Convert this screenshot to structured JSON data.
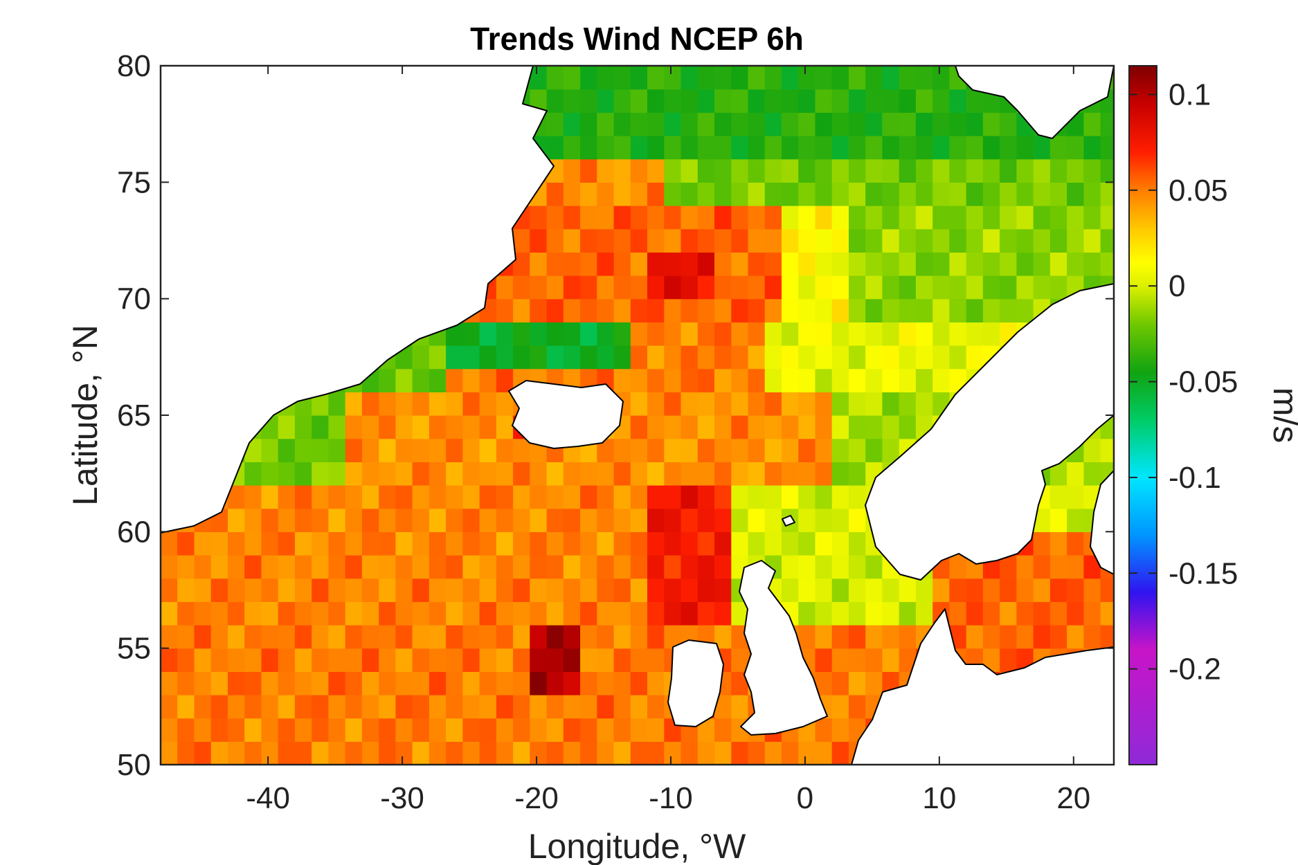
{
  "map": {
    "title": "Trends Wind NCEP 6h",
    "xlabel": "Longitude, °W",
    "ylabel": "Latitude, °N",
    "xticks": [
      "-40",
      "-30",
      "-20",
      "-10",
      "0",
      "10",
      "20"
    ],
    "yticks": [
      "80",
      "75",
      "70",
      "65",
      "60",
      "55",
      "50"
    ],
    "extent": {
      "lon_min": -48,
      "lon_max": 23,
      "lat_min": 50,
      "lat_max": 80
    },
    "grid_resolution_deg": {
      "lon": 1.25,
      "lat": 1.0
    },
    "land_color": "#ffffff",
    "coastline_color": "#000000",
    "landmasses": [
      "Greenland",
      "Iceland",
      "Ireland",
      "Great Britain",
      "Scandinavia",
      "Denmark",
      "Svalbard",
      "Continental Europe"
    ]
  },
  "colorbar": {
    "label": "m/s",
    "ticks": [
      "0.1",
      "0.05",
      "0",
      "-0.05",
      "-0.1",
      "-0.15",
      "-0.2"
    ],
    "tick_values": [
      0.1,
      0.05,
      0,
      -0.05,
      -0.1,
      -0.15,
      -0.2
    ],
    "range": [
      -0.25,
      0.115
    ],
    "colormap": "jet-like (purple-blue-cyan-green-yellow-orange-red-darkred)",
    "stops": [
      {
        "v": -0.25,
        "color": "#8f2ad8"
      },
      {
        "v": -0.19,
        "color": "#c814c8"
      },
      {
        "v": -0.16,
        "color": "#3014f0"
      },
      {
        "v": -0.13,
        "color": "#0096ff"
      },
      {
        "v": -0.1,
        "color": "#00e6ff"
      },
      {
        "v": -0.07,
        "color": "#00cc66"
      },
      {
        "v": -0.045,
        "color": "#11a311"
      },
      {
        "v": -0.02,
        "color": "#70c800"
      },
      {
        "v": 0.0,
        "color": "#dcf000"
      },
      {
        "v": 0.012,
        "color": "#ffff00"
      },
      {
        "v": 0.03,
        "color": "#ffc800"
      },
      {
        "v": 0.05,
        "color": "#ff7d00"
      },
      {
        "v": 0.07,
        "color": "#ff1e00"
      },
      {
        "v": 0.095,
        "color": "#c80000"
      },
      {
        "v": 0.115,
        "color": "#7d0000"
      }
    ]
  }
}
